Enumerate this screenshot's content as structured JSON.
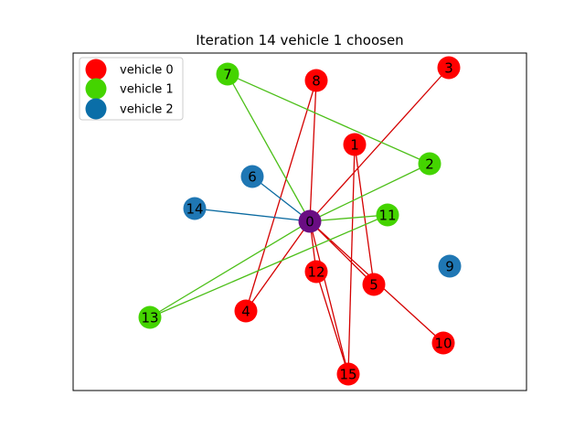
{
  "title": "Iteration 14 vehicle 1 choosen",
  "colors": {
    "depot": "#6a0d83",
    "edge_vehicle_0": "#d40000",
    "edge_vehicle_1": "#4cbf18",
    "edge_vehicle_2": "#0a6aa0",
    "frame": "#000000",
    "background": "#ffffff"
  },
  "legend": [
    {
      "label": "vehicle 0",
      "color": "#ff0000"
    },
    {
      "label": "vehicle 1",
      "color": "#44d400"
    },
    {
      "label": "vehicle 2",
      "color": "#0a6ea8"
    }
  ],
  "nodes": [
    {
      "id": "0",
      "vehicle": "depot",
      "color": "#6a0d83"
    },
    {
      "id": "1",
      "vehicle": 0,
      "color": "#ff0000"
    },
    {
      "id": "2",
      "vehicle": 1,
      "color": "#44d400"
    },
    {
      "id": "3",
      "vehicle": 0,
      "color": "#ff0000"
    },
    {
      "id": "4",
      "vehicle": 0,
      "color": "#ff0000"
    },
    {
      "id": "5",
      "vehicle": 0,
      "color": "#ff0000"
    },
    {
      "id": "6",
      "vehicle": 2,
      "color": "#1f77b4"
    },
    {
      "id": "7",
      "vehicle": 1,
      "color": "#44d400"
    },
    {
      "id": "8",
      "vehicle": 0,
      "color": "#ff0000"
    },
    {
      "id": "9",
      "vehicle": 2,
      "color": "#1f77b4"
    },
    {
      "id": "10",
      "vehicle": 0,
      "color": "#ff0000"
    },
    {
      "id": "11",
      "vehicle": 1,
      "color": "#44d400"
    },
    {
      "id": "12",
      "vehicle": 0,
      "color": "#ff0000"
    },
    {
      "id": "13",
      "vehicle": 1,
      "color": "#44d400"
    },
    {
      "id": "14",
      "vehicle": 2,
      "color": "#1f77b4"
    },
    {
      "id": "15",
      "vehicle": 0,
      "color": "#ff0000"
    }
  ],
  "edges": [
    {
      "from": "0",
      "to": "8",
      "vehicle": 0
    },
    {
      "from": "0",
      "to": "3",
      "vehicle": 0
    },
    {
      "from": "0",
      "to": "4",
      "vehicle": 0
    },
    {
      "from": "0",
      "to": "12",
      "vehicle": 0
    },
    {
      "from": "0",
      "to": "15",
      "vehicle": 0
    },
    {
      "from": "0",
      "to": "10",
      "vehicle": 0
    },
    {
      "from": "0",
      "to": "5",
      "vehicle": 0
    },
    {
      "from": "4",
      "to": "8",
      "vehicle": 0
    },
    {
      "from": "1",
      "to": "5",
      "vehicle": 0
    },
    {
      "from": "1",
      "to": "15",
      "vehicle": 0
    },
    {
      "from": "12",
      "to": "15",
      "vehicle": 0
    },
    {
      "from": "0",
      "to": "7",
      "vehicle": 1
    },
    {
      "from": "7",
      "to": "2",
      "vehicle": 1
    },
    {
      "from": "0",
      "to": "2",
      "vehicle": 1
    },
    {
      "from": "0",
      "to": "11",
      "vehicle": 1
    },
    {
      "from": "0",
      "to": "13",
      "vehicle": 1
    },
    {
      "from": "13",
      "to": "11",
      "vehicle": 1
    },
    {
      "from": "0",
      "to": "6",
      "vehicle": 2
    },
    {
      "from": "0",
      "to": "14",
      "vehicle": 2
    }
  ]
}
